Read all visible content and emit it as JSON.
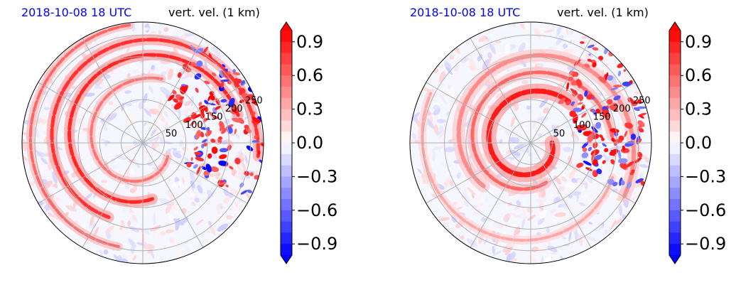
{
  "chart_data": [
    {
      "type": "heatmap",
      "projection": "polar",
      "title_left": "2018-10-08 18 UTC",
      "title_right": "vert. vel. (1 km)",
      "radial_ticks": [
        50,
        100,
        150,
        200,
        250
      ],
      "colorbar": {
        "ticks": [
          0.9,
          0.6,
          0.3,
          0.0,
          -0.3,
          -0.6,
          -0.9
        ],
        "tick_labels": [
          "0.9",
          "0.6",
          "0.3",
          "0.0",
          "−0.3",
          "−0.6",
          "−0.9"
        ],
        "range": [
          -1.0,
          1.0
        ],
        "extend": "both",
        "colors": {
          "max": "#ff0000",
          "mid": "#ffffff",
          "min": "#0000ff"
        }
      },
      "grid": true,
      "pattern": "spiral rainbands, strong updrafts toward outer east"
    },
    {
      "type": "heatmap",
      "projection": "polar",
      "title_left": "2018-10-08 18 UTC",
      "title_right": "vert. vel. (1 km)",
      "radial_ticks": [
        50,
        100,
        150,
        200,
        250
      ],
      "colorbar": {
        "ticks": [
          0.9,
          0.6,
          0.3,
          0.0,
          -0.3,
          -0.6,
          -0.9
        ],
        "tick_labels": [
          "0.9",
          "0.6",
          "0.3",
          "0.0",
          "−0.3",
          "−0.6",
          "−0.9"
        ],
        "range": [
          -1.0,
          1.0
        ],
        "extend": "both",
        "colors": {
          "max": "#ff0000",
          "mid": "#ffffff",
          "min": "#0000ff"
        }
      },
      "grid": true,
      "pattern": "tight eyewall ring near center with spiral bands"
    }
  ]
}
